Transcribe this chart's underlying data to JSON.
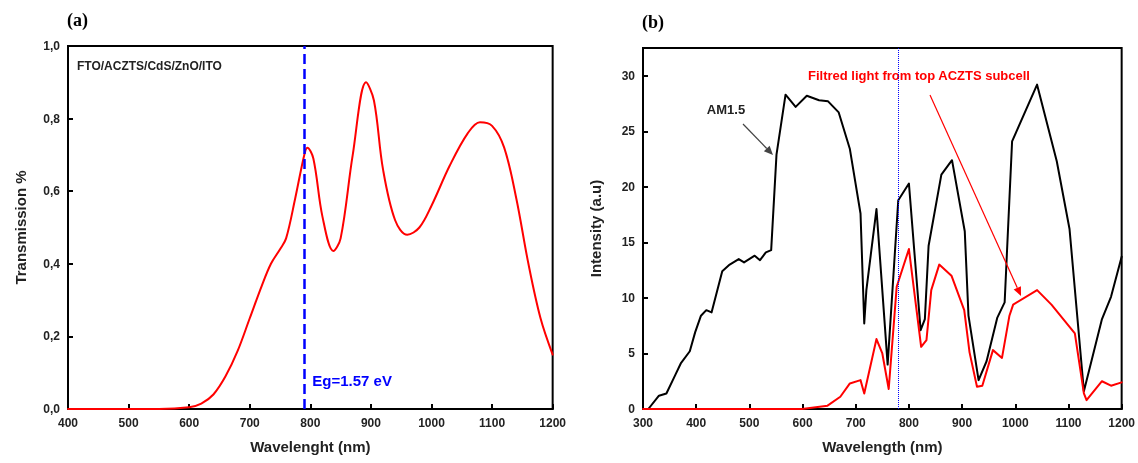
{
  "chart_data": [
    {
      "type": "line",
      "title": "(a)",
      "xlabel": "Wavelenght (nm)",
      "ylabel": "Transmission %",
      "xlim": [
        400,
        1200
      ],
      "xticks": [
        400,
        500,
        600,
        700,
        800,
        900,
        1000,
        1100,
        1200
      ],
      "ylim": [
        0,
        1
      ],
      "yticks": [
        {
          "value": 0,
          "label": "0,0"
        },
        {
          "value": 0.2,
          "label": "0,2"
        },
        {
          "value": 0.4,
          "label": "0,4"
        },
        {
          "value": 0.6,
          "label": "0,6"
        },
        {
          "value": 0.8,
          "label": "0,8"
        },
        {
          "value": 1,
          "label": "1,0"
        }
      ],
      "grid": false,
      "marker": "none",
      "line_style": "solid",
      "series": [
        {
          "color": "#ff0000",
          "x": [
            400,
            550,
            600,
            620,
            640,
            660,
            680,
            700,
            720,
            735,
            750,
            760,
            775,
            790,
            795,
            805,
            820,
            838,
            850,
            870,
            892,
            905,
            920,
            940,
            960,
            980,
            1000,
            1030,
            1060,
            1080,
            1100,
            1120,
            1140,
            1160,
            1180,
            1200
          ],
          "values": [
            0,
            0,
            0.005,
            0.015,
            0.04,
            0.09,
            0.16,
            0.25,
            0.34,
            0.4,
            0.44,
            0.47,
            0.58,
            0.7,
            0.72,
            0.69,
            0.53,
            0.435,
            0.47,
            0.7,
            0.9,
            0.85,
            0.66,
            0.52,
            0.48,
            0.5,
            0.56,
            0.67,
            0.76,
            0.79,
            0.78,
            0.72,
            0.58,
            0.4,
            0.25,
            0.15
          ]
        }
      ],
      "ref_lines": [
        {
          "axis": "x",
          "value": 790,
          "color": "#0000ff",
          "line_style": "dashed"
        }
      ],
      "annotations": [
        "FTO/ACZTS/CdS/ZnO/ITO",
        "Eg=1.57 eV"
      ]
    },
    {
      "type": "line",
      "title": "(b)",
      "xlabel": "Wavelength (nm)",
      "ylabel": "Intensity (a.u)",
      "xlim": [
        300,
        1200
      ],
      "xticks": [
        300,
        400,
        500,
        600,
        700,
        800,
        900,
        1000,
        1100,
        1200
      ],
      "ylim": [
        0,
        32.5
      ],
      "yticks": [
        0,
        5,
        10,
        15,
        20,
        25,
        30
      ],
      "grid": false,
      "marker": "none",
      "line_style": "solid",
      "series": [
        {
          "color": "#000000",
          "x": [
            310,
            330,
            344,
            361,
            371,
            388,
            398,
            409,
            419,
            429,
            449,
            463,
            480,
            490,
            510,
            520,
            531,
            541,
            551,
            568,
            587,
            608,
            631,
            648,
            668,
            689,
            709,
            716,
            720,
            739,
            760,
            780,
            800,
            822,
            830,
            837,
            861,
            881,
            905,
            912,
            931,
            946,
            966,
            980,
            994,
            1041,
            1078,
            1102,
            1129,
            1163,
            1180,
            1200
          ],
          "values": [
            0,
            1.2,
            1.4,
            3.1,
            4.1,
            5.2,
            6.9,
            8.4,
            8.9,
            8.7,
            12.4,
            13.0,
            13.5,
            13.2,
            13.8,
            13.4,
            14.1,
            14.3,
            22.9,
            28.3,
            27.2,
            28.2,
            27.8,
            27.7,
            26.7,
            23.4,
            17.6,
            7.7,
            10.7,
            18,
            4.0,
            18.8,
            20.3,
            7.1,
            8.1,
            14.7,
            21.1,
            22.4,
            16,
            8.4,
            2.6,
            4.3,
            8.2,
            9.6,
            24.1,
            29.2,
            22.3,
            16.2,
            1.6,
            8.1,
            10.1,
            13.7
          ]
        },
        {
          "color": "#ff0000",
          "x": [
            300,
            599,
            647,
            671,
            689,
            709,
            716,
            739,
            750,
            762,
            777,
            800,
            823,
            833,
            842,
            857,
            880,
            904,
            914,
            928,
            938,
            958,
            975,
            989,
            996,
            1041,
            1068,
            1112,
            1129,
            1134,
            1163,
            1180,
            1200
          ],
          "values": [
            0,
            0,
            0.3,
            1.1,
            2.3,
            2.6,
            1.4,
            6.3,
            5,
            1.8,
            11,
            14.4,
            5.6,
            6.2,
            10.7,
            13,
            12,
            8.9,
            5.1,
            2.0,
            2.1,
            5.3,
            4.6,
            8.4,
            9.4,
            10.7,
            9.4,
            6.8,
            1.4,
            0.8,
            2.5,
            2.1,
            2.4
          ]
        }
      ],
      "ref_lines": [
        {
          "axis": "x",
          "value": 780,
          "color": "#0000ff",
          "line_style": "dotted"
        }
      ],
      "annotations": [
        "AM1.5",
        "Filtred light from top ACZTS subcell"
      ]
    }
  ]
}
